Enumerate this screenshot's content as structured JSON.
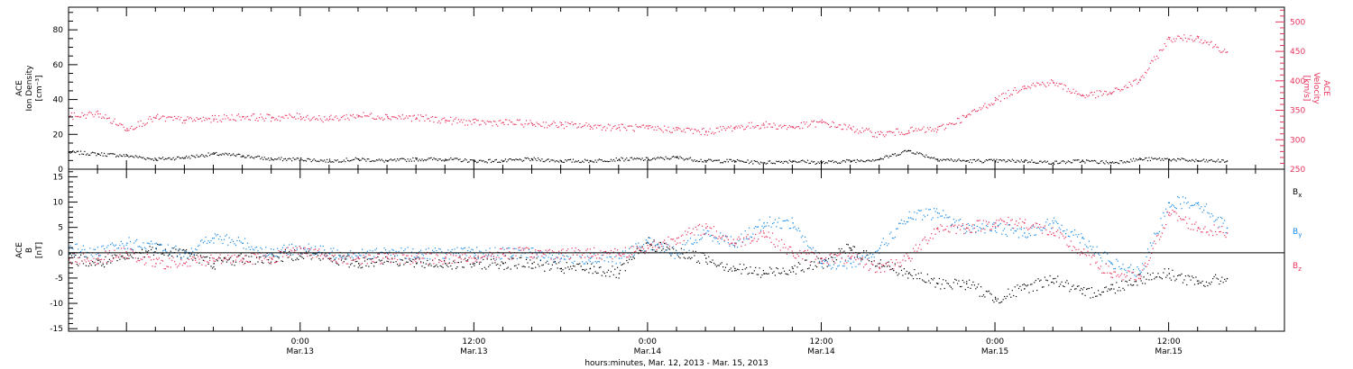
{
  "colors": {
    "black": "#000000",
    "red": "#e8335c",
    "blue": "#1a8ce6"
  },
  "chart_data": [
    {
      "type": "scatter",
      "panel": "top",
      "ylabel_lines": [
        "ACE",
        "Ion Density",
        "[cm⁻³]"
      ],
      "ylim": [
        0,
        93
      ],
      "yticks": [
        0,
        20,
        40,
        60,
        80
      ],
      "y2label_lines": [
        "ACE",
        "Velocity",
        "[km/s]"
      ],
      "y2lim": [
        250,
        525
      ],
      "y2ticks": [
        250,
        300,
        350,
        400,
        450,
        500
      ],
      "x_range_hours": [
        -16,
        68
      ],
      "legend": "none",
      "grid": false,
      "series": [
        {
          "axis": "left",
          "color": "black",
          "x": [
            -16,
            -14,
            -12,
            -10,
            -8,
            -6,
            -4,
            -2,
            0,
            2,
            4,
            6,
            8,
            10,
            12,
            14,
            16,
            18,
            20,
            22,
            24,
            26,
            28,
            30,
            32,
            34,
            36,
            38,
            40,
            42,
            44,
            46,
            48,
            50,
            52,
            54,
            56,
            58,
            60,
            62,
            64
          ],
          "y": [
            10,
            9,
            8,
            6,
            7,
            9,
            8,
            6,
            6,
            5,
            6,
            5,
            6,
            6,
            5,
            5,
            6,
            5,
            5,
            6,
            6,
            7,
            5,
            5,
            4,
            5,
            4,
            5,
            6,
            11,
            6,
            5,
            5,
            5,
            4,
            5,
            4,
            6,
            6,
            5,
            5
          ]
        },
        {
          "axis": "right",
          "color": "red",
          "x": [
            -16,
            -14,
            -12,
            -10,
            -8,
            -6,
            -4,
            -2,
            0,
            2,
            4,
            6,
            8,
            10,
            12,
            14,
            16,
            18,
            20,
            22,
            24,
            26,
            28,
            30,
            32,
            34,
            36,
            38,
            40,
            42,
            44,
            46,
            48,
            50,
            52,
            54,
            56,
            58,
            60,
            62,
            64
          ],
          "y": [
            340,
            345,
            320,
            338,
            334,
            336,
            340,
            338,
            340,
            336,
            342,
            340,
            338,
            334,
            330,
            330,
            328,
            326,
            324,
            322,
            320,
            318,
            314,
            322,
            326,
            322,
            330,
            320,
            310,
            316,
            318,
            340,
            368,
            392,
            398,
            376,
            380,
            402,
            472,
            474,
            450
          ]
        }
      ]
    },
    {
      "type": "scatter",
      "panel": "bottom",
      "ylabel_lines": [
        "ACE",
        "B",
        "[nT]"
      ],
      "ylim": [
        -15.5,
        16.5
      ],
      "yticks": [
        -15,
        -10,
        -5,
        0,
        5,
        10,
        15
      ],
      "x_range_hours": [
        -16,
        68
      ],
      "xticks": [
        {
          "hour": 0,
          "label1": "0:00",
          "label2": "Mar.13"
        },
        {
          "hour": 12,
          "label1": "12:00",
          "label2": "Mar.13"
        },
        {
          "hour": 24,
          "label1": "0:00",
          "label2": "Mar.14"
        },
        {
          "hour": 36,
          "label1": "12:00",
          "label2": "Mar.14"
        },
        {
          "hour": 48,
          "label1": "0:00",
          "label2": "Mar.15"
        },
        {
          "hour": 60,
          "label1": "12:00",
          "label2": "Mar.15"
        }
      ],
      "xlabel": "hours:minutes, Mar. 12, 2013 - Mar. 15, 2013",
      "legend": "right",
      "grid": false,
      "series": [
        {
          "name": "B",
          "sub": "x",
          "color": "black",
          "x": [
            -16,
            -14,
            -12,
            -10,
            -8,
            -6,
            -4,
            -2,
            0,
            2,
            4,
            6,
            8,
            10,
            12,
            14,
            16,
            18,
            20,
            22,
            24,
            26,
            28,
            30,
            32,
            34,
            36,
            38,
            40,
            42,
            44,
            46,
            48,
            50,
            52,
            54,
            56,
            58,
            60,
            62,
            64
          ],
          "y": [
            -1,
            -2,
            -1,
            1,
            0,
            -2,
            -1,
            -1,
            0,
            -1,
            -2,
            -1,
            -2,
            -2,
            -2,
            -2,
            -2,
            -3,
            -3,
            -4,
            2,
            0,
            -1,
            -3,
            -4,
            -3,
            -2,
            1,
            -2,
            -4,
            -6,
            -6,
            -9,
            -7,
            -5,
            -8,
            -7,
            -5,
            -4,
            -6,
            -5
          ]
        },
        {
          "name": "B",
          "sub": "y",
          "color": "blue",
          "x": [
            -16,
            -14,
            -12,
            -10,
            -8,
            -6,
            -4,
            -2,
            0,
            2,
            4,
            6,
            8,
            10,
            12,
            14,
            16,
            18,
            20,
            22,
            24,
            26,
            28,
            30,
            32,
            34,
            36,
            38,
            40,
            42,
            44,
            46,
            48,
            50,
            52,
            54,
            56,
            58,
            60,
            62,
            64
          ],
          "y": [
            1,
            0,
            2,
            1,
            0,
            3,
            2,
            0,
            1,
            0,
            0,
            0,
            0,
            0,
            0,
            0,
            0,
            -1,
            -1,
            -1,
            2,
            0,
            4,
            2,
            6,
            6,
            -2,
            -2,
            1,
            7,
            8,
            5,
            5,
            4,
            6,
            3,
            -2,
            -4,
            10,
            10,
            5
          ]
        },
        {
          "name": "B",
          "sub": "z",
          "color": "red",
          "x": [
            -16,
            -14,
            -12,
            -10,
            -8,
            -6,
            -4,
            -2,
            0,
            2,
            4,
            6,
            8,
            10,
            12,
            14,
            16,
            18,
            20,
            22,
            24,
            26,
            28,
            30,
            32,
            34,
            36,
            38,
            40,
            42,
            44,
            46,
            48,
            50,
            52,
            54,
            56,
            58,
            60,
            62,
            64
          ],
          "y": [
            -1,
            -1,
            0,
            -2,
            -2,
            -1,
            -1,
            -1,
            1,
            -1,
            -1,
            -1,
            -1,
            -1,
            -1,
            0,
            0,
            0,
            0,
            0,
            1,
            3,
            5,
            2,
            4,
            0,
            -1,
            -1,
            -3,
            -1,
            5,
            5,
            6,
            6,
            4,
            0,
            -4,
            -5,
            8,
            5,
            4
          ]
        }
      ]
    }
  ]
}
